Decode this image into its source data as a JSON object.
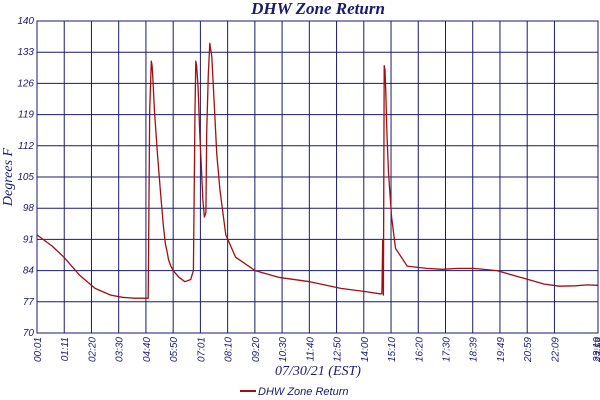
{
  "chart_data": {
    "type": "line",
    "title": "DHW Zone Return",
    "xlabel": "07/30/21 (EST)",
    "ylabel": "Degrees F",
    "ylim": [
      70,
      140
    ],
    "yticks": [
      70,
      77,
      84,
      91,
      98,
      105,
      112,
      119,
      126,
      133,
      140
    ],
    "xticks": [
      "00:01",
      "01:11",
      "02:20",
      "03:30",
      "04:40",
      "05:50",
      "07:01",
      "08:10",
      "09:20",
      "10:30",
      "11:40",
      "12:50",
      "14:00",
      "15:10",
      "16:20",
      "17:30",
      "18:39",
      "19:49",
      "20:59",
      "22:09",
      "23:19",
      "23:59"
    ],
    "xlim_minutes": [
      1,
      1439
    ],
    "grid": true,
    "legend_position": "bottom",
    "colors": {
      "series": "#a01010",
      "grid": "#1a1a6e",
      "text": "#1a1a6e"
    },
    "series": [
      {
        "name": "DHW Zone Return",
        "x_minutes": [
          1,
          40,
          70,
          110,
          150,
          190,
          220,
          250,
          275,
          286,
          290,
          294,
          296,
          298,
          302,
          310,
          318,
          325,
          330,
          335,
          338,
          344,
          350,
          365,
          380,
          395,
          402,
          406,
          408,
          410,
          414,
          418,
          422,
          426,
          430,
          434,
          436,
          440,
          444,
          449,
          455,
          462,
          470,
          485,
          510,
          560,
          620,
          700,
          780,
          850,
          880,
          885,
          887,
          889,
          891,
          893,
          895,
          898,
          902,
          910,
          920,
          950,
          1000,
          1040,
          1080,
          1120,
          1180,
          1220,
          1260,
          1300,
          1340,
          1380,
          1410,
          1439
        ],
        "y": [
          92,
          89.5,
          87,
          83,
          80,
          78.5,
          78,
          77.8,
          77.8,
          77.8,
          120,
          131,
          130,
          127,
          120,
          110,
          101,
          94,
          90,
          88,
          86.5,
          85,
          84,
          82.5,
          81.5,
          82,
          84,
          120,
          131,
          130,
          125,
          115,
          108,
          100,
          96,
          97,
          115,
          128,
          135,
          132,
          122,
          110,
          102,
          92,
          87,
          84,
          82.5,
          81.5,
          80,
          79.2,
          78.8,
          78.8,
          91,
          78.5,
          130,
          129,
          124,
          115,
          106,
          96,
          89,
          85,
          84.5,
          84.3,
          84.5,
          84.5,
          84,
          83,
          82,
          81,
          80.5,
          80.6,
          80.8,
          80.7
        ]
      }
    ]
  }
}
